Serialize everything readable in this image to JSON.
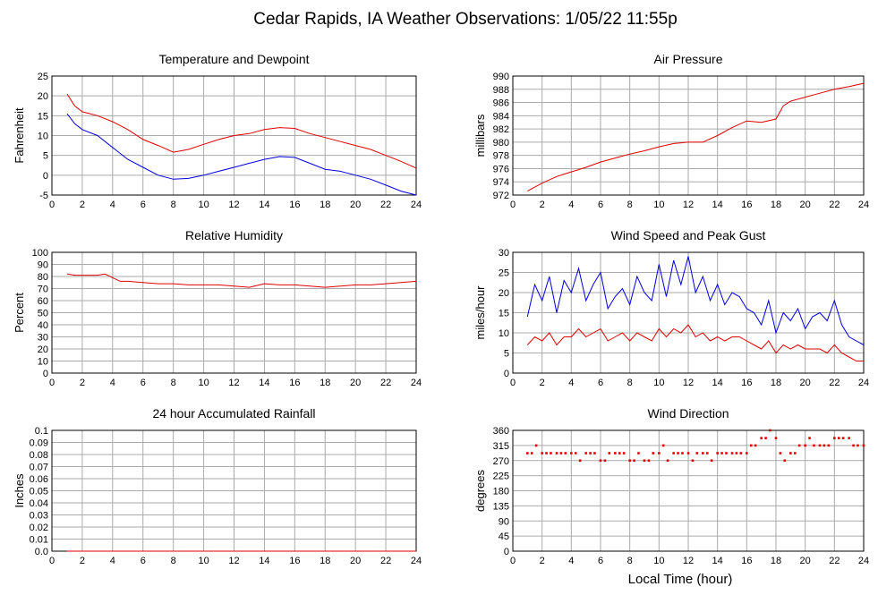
{
  "page_title": "Cedar Rapids, IA Weather Observations: 1/05/22 11:55p",
  "x_axis_title": "Local Time (hour)",
  "colors": {
    "red": "#e00000",
    "blue": "#0000dd",
    "grid": "#aaaaaa",
    "frame": "#000000"
  },
  "chart_data": [
    {
      "id": "temperature",
      "type": "line",
      "title": "Temperature and Dewpoint",
      "xlabel": "",
      "ylabel": "Fahrenheit",
      "xlim": [
        0,
        24
      ],
      "ylim": [
        -5,
        25
      ],
      "xticks": [
        0,
        2,
        4,
        6,
        8,
        10,
        12,
        14,
        16,
        18,
        20,
        22,
        24
      ],
      "yticks": [
        -5,
        0,
        5,
        10,
        15,
        20,
        25
      ],
      "grid": true,
      "series": [
        {
          "color": "#e00000",
          "x": [
            1.0,
            1.5,
            2.0,
            3.0,
            4.0,
            5.0,
            6.0,
            7.0,
            8.0,
            9.0,
            10.0,
            11.0,
            12.0,
            13.0,
            14.0,
            15.0,
            16.0,
            17.0,
            18.0,
            19.0,
            20.0,
            21.0,
            22.0,
            23.0,
            24.0
          ],
          "y": [
            20.5,
            17.5,
            16.0,
            15.0,
            13.5,
            11.5,
            9.0,
            7.5,
            5.8,
            6.5,
            7.8,
            9.0,
            10.0,
            10.5,
            11.5,
            12.0,
            11.8,
            10.5,
            9.5,
            8.5,
            7.5,
            6.5,
            5.0,
            3.5,
            1.8
          ]
        },
        {
          "color": "#0000dd",
          "x": [
            1.0,
            1.5,
            2.0,
            3.0,
            4.0,
            5.0,
            6.0,
            7.0,
            8.0,
            9.0,
            10.0,
            11.0,
            12.0,
            13.0,
            14.0,
            15.0,
            16.0,
            17.0,
            18.0,
            19.0,
            20.0,
            21.0,
            22.0,
            23.0,
            24.0
          ],
          "y": [
            15.5,
            13.0,
            11.5,
            10.0,
            7.0,
            4.0,
            2.0,
            0.0,
            -1.0,
            -0.8,
            0.0,
            1.0,
            2.0,
            3.0,
            4.0,
            4.7,
            4.5,
            3.0,
            1.5,
            1.0,
            0.0,
            -1.0,
            -2.5,
            -4.0,
            -5.0
          ]
        }
      ]
    },
    {
      "id": "pressure",
      "type": "line",
      "title": "Air Pressure",
      "xlabel": "",
      "ylabel": "millibars",
      "xlim": [
        0,
        24
      ],
      "ylim": [
        972,
        990
      ],
      "xticks": [
        0,
        2,
        4,
        6,
        8,
        10,
        12,
        14,
        16,
        18,
        20,
        22,
        24
      ],
      "yticks": [
        972,
        974,
        976,
        978,
        980,
        982,
        984,
        986,
        988,
        990
      ],
      "grid": true,
      "series": [
        {
          "color": "#e00000",
          "x": [
            1.0,
            2.0,
            3.0,
            4.0,
            5.0,
            6.0,
            7.0,
            8.0,
            9.0,
            10.0,
            11.0,
            12.0,
            13.0,
            14.0,
            15.0,
            16.0,
            17.0,
            18.0,
            18.5,
            19.0,
            20.0,
            21.0,
            22.0,
            23.0,
            24.0
          ],
          "y": [
            972.6,
            973.8,
            974.8,
            975.5,
            976.2,
            977.0,
            977.6,
            978.2,
            978.7,
            979.3,
            979.8,
            980.0,
            980.0,
            981.0,
            982.2,
            983.2,
            983.0,
            983.5,
            985.5,
            986.2,
            986.8,
            987.4,
            988.0,
            988.4,
            988.9
          ]
        }
      ]
    },
    {
      "id": "humidity",
      "type": "line",
      "title": "Relative Humidity",
      "xlabel": "",
      "ylabel": "Percent",
      "xlim": [
        0,
        24
      ],
      "ylim": [
        0,
        100
      ],
      "xticks": [
        0,
        2,
        4,
        6,
        8,
        10,
        12,
        14,
        16,
        18,
        20,
        22,
        24
      ],
      "yticks": [
        0,
        10,
        20,
        30,
        40,
        50,
        60,
        70,
        80,
        90,
        100
      ],
      "grid": true,
      "series": [
        {
          "color": "#e00000",
          "x": [
            1.0,
            1.5,
            2.0,
            3.0,
            3.5,
            4.0,
            4.5,
            5.0,
            6.0,
            7.0,
            8.0,
            9.0,
            10.0,
            11.0,
            12.0,
            13.0,
            14.0,
            15.0,
            16.0,
            17.0,
            18.0,
            19.0,
            20.0,
            21.0,
            22.0,
            23.0,
            24.0
          ],
          "y": [
            82,
            81,
            81,
            81,
            82,
            79,
            76,
            76,
            75,
            74,
            74,
            73,
            73,
            73,
            72,
            71,
            74,
            73,
            73,
            72,
            71,
            72,
            73,
            73,
            74,
            75,
            76
          ]
        }
      ]
    },
    {
      "id": "wind_speed",
      "type": "line",
      "title": "Wind Speed and Peak Gust",
      "xlabel": "",
      "ylabel": "miles/hour",
      "xlim": [
        0,
        24
      ],
      "ylim": [
        0,
        30
      ],
      "xticks": [
        0,
        2,
        4,
        6,
        8,
        10,
        12,
        14,
        16,
        18,
        20,
        22,
        24
      ],
      "yticks": [
        0,
        5,
        10,
        15,
        20,
        25,
        30
      ],
      "grid": true,
      "series": [
        {
          "color": "#0000dd",
          "x": [
            1.0,
            1.5,
            2.0,
            2.5,
            3.0,
            3.5,
            4.0,
            4.5,
            5.0,
            5.5,
            6.0,
            6.5,
            7.0,
            7.5,
            8.0,
            8.5,
            9.0,
            9.5,
            10.0,
            10.5,
            11.0,
            11.5,
            12.0,
            12.5,
            13.0,
            13.5,
            14.0,
            14.5,
            15.0,
            15.5,
            16.0,
            16.5,
            17.0,
            17.5,
            18.0,
            18.5,
            19.0,
            19.5,
            20.0,
            20.5,
            21.0,
            21.5,
            22.0,
            22.5,
            23.0,
            23.5,
            24.0
          ],
          "y": [
            14,
            22,
            18,
            24,
            15,
            23,
            20,
            26,
            18,
            22,
            25,
            16,
            19,
            21,
            17,
            24,
            20,
            18,
            27,
            19,
            28,
            22,
            29,
            20,
            24,
            18,
            22,
            17,
            20,
            19,
            16,
            15,
            12,
            18,
            10,
            15,
            13,
            16,
            11,
            14,
            15,
            13,
            18,
            12,
            9,
            8,
            7
          ]
        },
        {
          "color": "#e00000",
          "x": [
            1.0,
            1.5,
            2.0,
            2.5,
            3.0,
            3.5,
            4.0,
            4.5,
            5.0,
            5.5,
            6.0,
            6.5,
            7.0,
            7.5,
            8.0,
            8.5,
            9.0,
            9.5,
            10.0,
            10.5,
            11.0,
            11.5,
            12.0,
            12.5,
            13.0,
            13.5,
            14.0,
            14.5,
            15.0,
            15.5,
            16.0,
            16.5,
            17.0,
            17.5,
            18.0,
            18.5,
            19.0,
            19.5,
            20.0,
            20.5,
            21.0,
            21.5,
            22.0,
            22.5,
            23.0,
            23.5,
            24.0
          ],
          "y": [
            7,
            9,
            8,
            10,
            7,
            9,
            9,
            11,
            9,
            10,
            11,
            8,
            9,
            10,
            8,
            10,
            9,
            8,
            11,
            9,
            11,
            10,
            12,
            9,
            10,
            8,
            9,
            8,
            9,
            9,
            8,
            7,
            6,
            8,
            5,
            7,
            6,
            7,
            6,
            6,
            6,
            5,
            7,
            5,
            4,
            3,
            3
          ]
        }
      ]
    },
    {
      "id": "rainfall",
      "type": "line",
      "title": "24 hour Accumulated Rainfall",
      "xlabel": "",
      "ylabel": "Inches",
      "xlim": [
        0,
        24
      ],
      "ylim": [
        0,
        0.1
      ],
      "xticks": [
        0,
        2,
        4,
        6,
        8,
        10,
        12,
        14,
        16,
        18,
        20,
        22,
        24
      ],
      "yticks": [
        0.0,
        0.01,
        0.02,
        0.03,
        0.04,
        0.05,
        0.06,
        0.07,
        0.08,
        0.09,
        0.1
      ],
      "ytick_labels": [
        "0.0",
        "0.01",
        "0.02",
        "0.03",
        "0.04",
        "0.05",
        "0.06",
        "0.07",
        "0.08",
        "0.09",
        "0.1"
      ],
      "grid": true,
      "series": [
        {
          "color": "#e00000",
          "x": [
            1.0,
            24.0
          ],
          "y": [
            0.0,
            0.0
          ]
        }
      ]
    },
    {
      "id": "wind_direction",
      "type": "scatter",
      "title": "Wind Direction",
      "xlabel": "Local Time (hour)",
      "ylabel": "degrees",
      "xlim": [
        0,
        24
      ],
      "ylim": [
        0,
        360
      ],
      "xticks": [
        0,
        2,
        4,
        6,
        8,
        10,
        12,
        14,
        16,
        18,
        20,
        22,
        24
      ],
      "yticks": [
        0,
        45,
        90,
        135,
        180,
        225,
        270,
        315,
        360
      ],
      "grid": true,
      "series": [
        {
          "color": "#e00000",
          "x": [
            1.0,
            1.3,
            1.6,
            2.0,
            2.3,
            2.6,
            3.0,
            3.3,
            3.6,
            4.0,
            4.3,
            4.6,
            5.0,
            5.3,
            5.6,
            6.0,
            6.3,
            6.6,
            7.0,
            7.3,
            7.6,
            8.0,
            8.3,
            8.6,
            9.0,
            9.3,
            9.6,
            10.0,
            10.3,
            10.6,
            11.0,
            11.3,
            11.6,
            12.0,
            12.3,
            12.6,
            13.0,
            13.3,
            13.6,
            14.0,
            14.3,
            14.6,
            15.0,
            15.3,
            15.6,
            16.0,
            16.3,
            16.6,
            17.0,
            17.3,
            17.6,
            18.0,
            18.3,
            18.6,
            19.0,
            19.3,
            19.6,
            20.0,
            20.3,
            20.6,
            21.0,
            21.3,
            21.6,
            22.0,
            22.3,
            22.6,
            23.0,
            23.3,
            23.6,
            24.0
          ],
          "y": [
            292,
            292,
            315,
            292,
            292,
            292,
            292,
            292,
            292,
            292,
            292,
            270,
            292,
            292,
            292,
            270,
            270,
            292,
            292,
            292,
            292,
            270,
            270,
            292,
            270,
            270,
            292,
            292,
            315,
            270,
            292,
            292,
            292,
            292,
            270,
            292,
            292,
            292,
            270,
            292,
            292,
            292,
            292,
            292,
            292,
            292,
            315,
            315,
            337,
            337,
            360,
            337,
            292,
            270,
            292,
            292,
            315,
            315,
            337,
            315,
            315,
            315,
            315,
            337,
            337,
            337,
            337,
            315,
            315,
            315
          ]
        }
      ]
    }
  ]
}
